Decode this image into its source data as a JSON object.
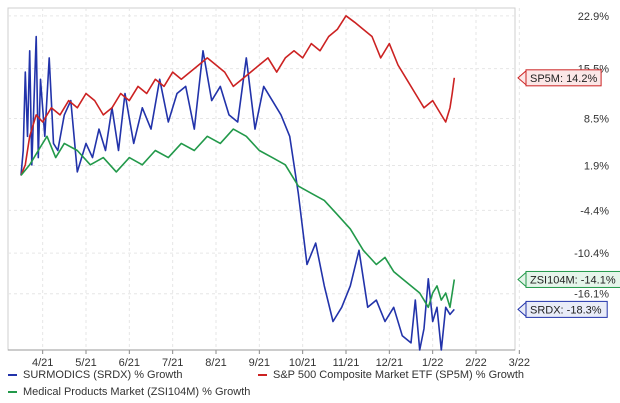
{
  "chart_data": {
    "type": "line",
    "x_ticks": [
      "4/21",
      "5/21",
      "6/21",
      "7/21",
      "8/21",
      "9/21",
      "10/21",
      "11/21",
      "12/21",
      "1/22",
      "2/22",
      "3/22"
    ],
    "y_ticks": [
      "22.9%",
      "15.5%",
      "8.5%",
      "1.9%",
      "-4.4%",
      "-10.4%",
      "-16.1%"
    ],
    "ylim": [
      -24,
      24
    ],
    "grid": true,
    "legend_position": "bottom",
    "series": [
      {
        "name": "SURMODICS (SRDX) % Growth",
        "color": "#2233aa",
        "end_label": "SRDX: -18.3%",
        "values": [
          0.5,
          4,
          15,
          6,
          18,
          2,
          20,
          3,
          14,
          6,
          17,
          5,
          4,
          9,
          11,
          1,
          5,
          3,
          7,
          4,
          10,
          4,
          12,
          5,
          10,
          7,
          14,
          8,
          12,
          13,
          7,
          18,
          11,
          13,
          9,
          8,
          17,
          7,
          13,
          11,
          9,
          6,
          -2,
          -12,
          -9,
          -15,
          -20,
          -18,
          -15,
          -10,
          -18,
          -17,
          -20,
          -18,
          -22,
          -23,
          -17,
          -24,
          -21,
          -14,
          -20,
          -18,
          -24,
          -18,
          -19,
          -18.3
        ],
        "x": [
          0,
          0.05,
          0.1,
          0.15,
          0.2,
          0.25,
          0.35,
          0.4,
          0.45,
          0.55,
          0.65,
          0.75,
          0.85,
          1.0,
          1.15,
          1.3,
          1.5,
          1.65,
          1.8,
          1.95,
          2.1,
          2.25,
          2.4,
          2.6,
          2.8,
          3.0,
          3.2,
          3.4,
          3.6,
          3.8,
          4.0,
          4.2,
          4.4,
          4.6,
          4.8,
          5.0,
          5.2,
          5.4,
          5.6,
          5.8,
          6.0,
          6.2,
          6.4,
          6.6,
          6.8,
          7.0,
          7.2,
          7.4,
          7.6,
          7.8,
          8.0,
          8.2,
          8.4,
          8.6,
          8.8,
          9.0,
          9.1,
          9.2,
          9.3,
          9.4,
          9.5,
          9.6,
          9.7,
          9.8,
          9.9,
          10.0
        ]
      },
      {
        "name": "S&P 500 Composite Market ETF (SP5M) % Growth",
        "color": "#cc2222",
        "end_label": "SP5M: 14.2%",
        "values": [
          0.5,
          2,
          6,
          9,
          8,
          10,
          9,
          11,
          10,
          12,
          11,
          9,
          10,
          12,
          11,
          13,
          12,
          14,
          13,
          15,
          14,
          15,
          16,
          17,
          16,
          15,
          13,
          14,
          15,
          16,
          17,
          15,
          17,
          18,
          17,
          19,
          18,
          20,
          21,
          22.9,
          22,
          21,
          20,
          17,
          19,
          16,
          14,
          12,
          10,
          11,
          9,
          8,
          10,
          12,
          14.2
        ],
        "x": [
          0,
          0.1,
          0.2,
          0.35,
          0.5,
          0.7,
          0.9,
          1.1,
          1.3,
          1.5,
          1.7,
          1.9,
          2.1,
          2.3,
          2.5,
          2.7,
          2.9,
          3.1,
          3.3,
          3.5,
          3.7,
          3.9,
          4.1,
          4.3,
          4.5,
          4.7,
          4.9,
          5.1,
          5.3,
          5.5,
          5.7,
          5.9,
          6.1,
          6.3,
          6.5,
          6.7,
          6.9,
          7.1,
          7.3,
          7.5,
          7.7,
          7.9,
          8.1,
          8.3,
          8.5,
          8.7,
          8.9,
          9.1,
          9.3,
          9.5,
          9.7,
          9.8,
          9.9,
          9.95,
          10.0
        ]
      },
      {
        "name": "Medical Products Market (ZSI104M) % Growth",
        "color": "#22994a",
        "end_label": "ZSI104M: -14.1%",
        "values": [
          0.5,
          2,
          4,
          6,
          3,
          5,
          4,
          2,
          3,
          1,
          3,
          2,
          4,
          3,
          5,
          4,
          6,
          5,
          7,
          6,
          4,
          3,
          2,
          -1,
          -2,
          -3,
          -5,
          -7,
          -10,
          -12,
          -11,
          -13,
          -14,
          -15,
          -16,
          -17,
          -18,
          -16,
          -15,
          -17,
          -16,
          -18,
          -14.1
        ],
        "x": [
          0,
          0.2,
          0.4,
          0.6,
          0.8,
          1.0,
          1.3,
          1.6,
          1.9,
          2.2,
          2.5,
          2.8,
          3.1,
          3.4,
          3.7,
          4.0,
          4.3,
          4.6,
          4.9,
          5.2,
          5.5,
          5.8,
          6.1,
          6.4,
          6.7,
          7.0,
          7.3,
          7.6,
          7.9,
          8.2,
          8.4,
          8.6,
          8.8,
          9.0,
          9.2,
          9.3,
          9.4,
          9.5,
          9.6,
          9.7,
          9.8,
          9.9,
          10.0
        ]
      }
    ]
  },
  "legend": {
    "srdx": "SURMODICS (SRDX) % Growth",
    "sp5m": "S&P 500 Composite Market ETF (SP5M) % Growth",
    "zsi": "Medical Products Market (ZSI104M) % Growth"
  }
}
